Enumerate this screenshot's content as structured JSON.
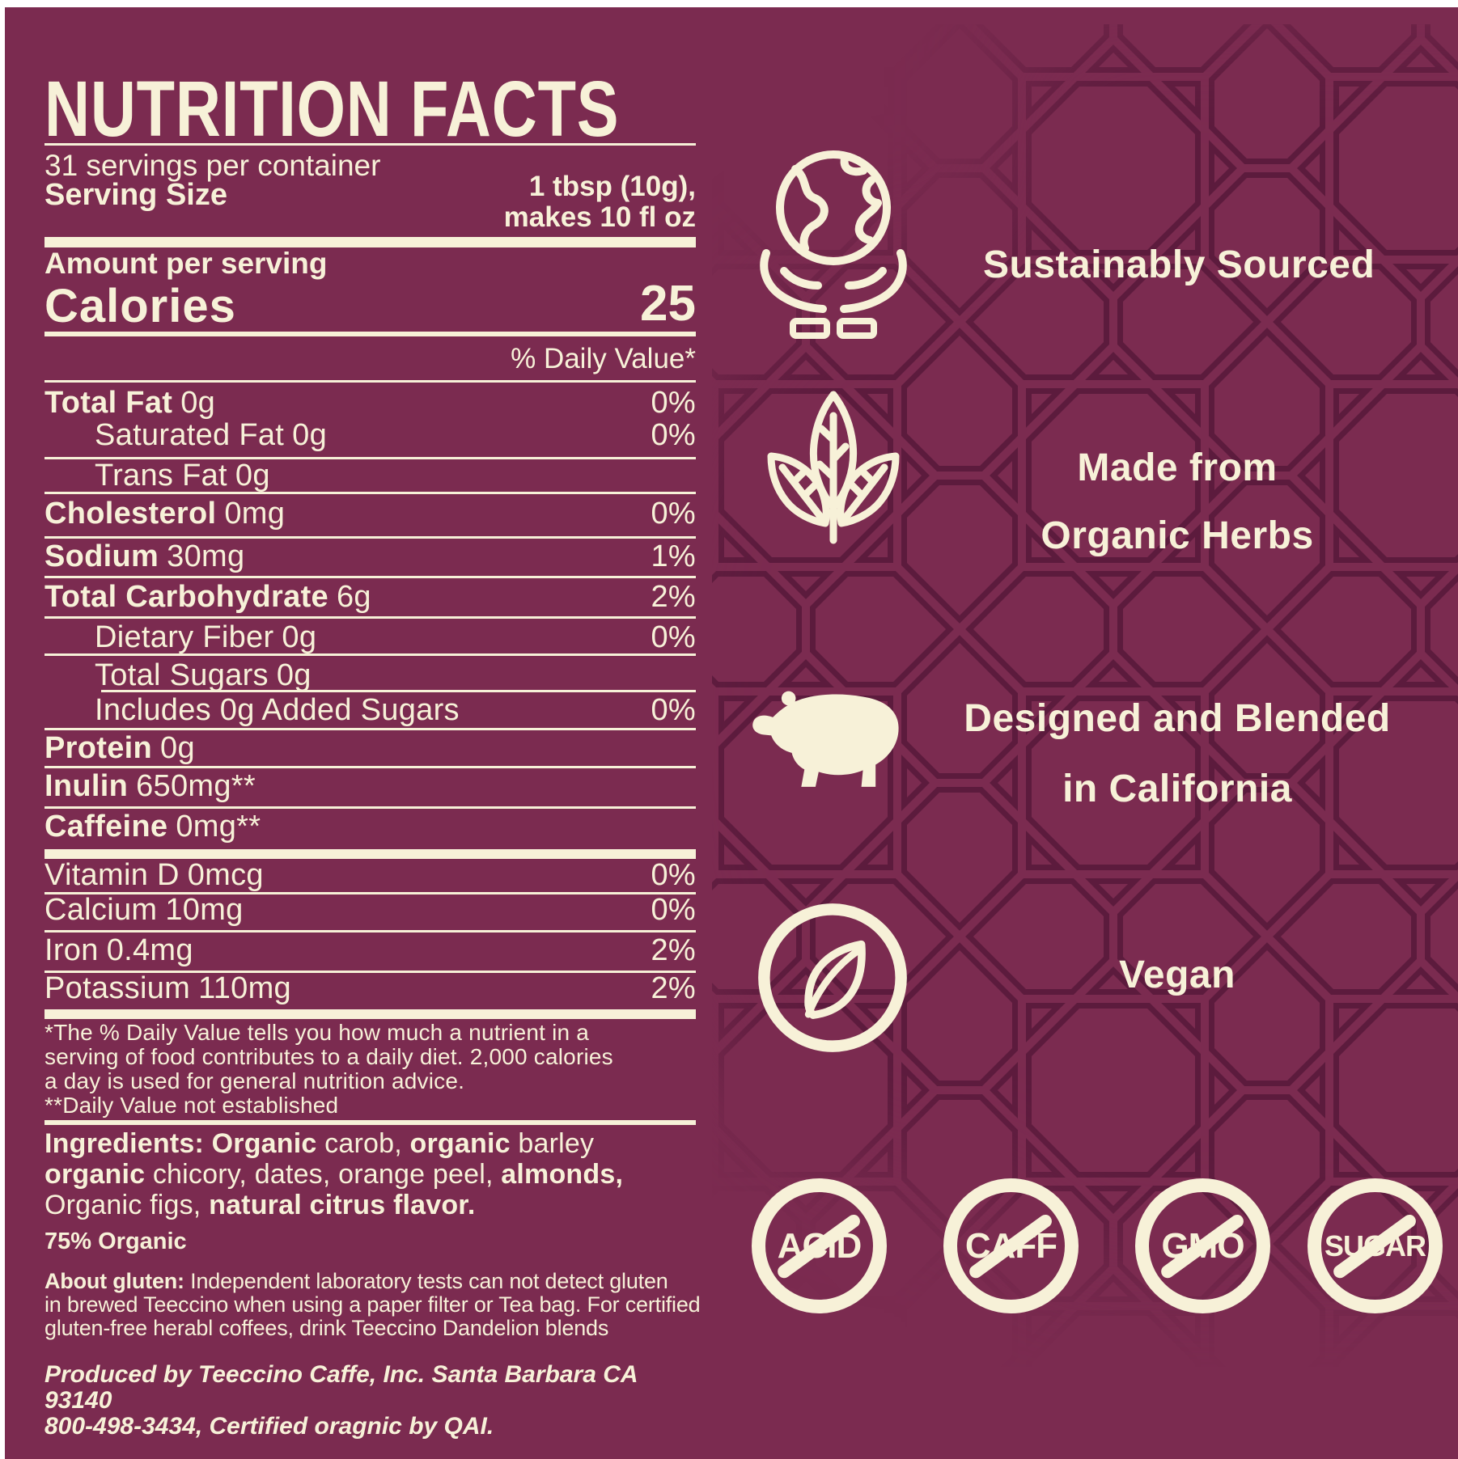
{
  "colors": {
    "background": "#7b2b50",
    "pattern": "#5c1b3d",
    "cream": "#f7f1d8",
    "border": "#ffffff"
  },
  "nutrition": {
    "title": "NUTRITION FACTS",
    "servings_per_container": "31 servings per container",
    "serving_size_label": "Serving Size",
    "serving_size_value_lines": [
      "1 tbsp (10g),",
      "makes 10 fl oz"
    ],
    "amount_label": "Amount per serving",
    "calories_label": "Calories",
    "calories_value": "25",
    "daily_value_header": "% Daily Value*",
    "rows": [
      {
        "label": "Total Fat",
        "value": "0g",
        "pct": "0%",
        "bold": true,
        "indent": 0
      },
      {
        "label": "Saturated Fat",
        "value": "0g",
        "pct": "0%",
        "bold": false,
        "indent": 1
      },
      {
        "label": "Trans Fat",
        "value": "0g",
        "pct": "",
        "bold": false,
        "indent": 1
      },
      {
        "label": "Cholesterol",
        "value": "0mg",
        "pct": "0%",
        "bold": true,
        "indent": 0
      },
      {
        "label": "Sodium",
        "value": "30mg",
        "pct": "1%",
        "bold": true,
        "indent": 0
      },
      {
        "label": "Total Carbohydrate",
        "value": "6g",
        "pct": "2%",
        "bold": true,
        "indent": 0
      },
      {
        "label": "Dietary Fiber",
        "value": "0g",
        "pct": "0%",
        "bold": false,
        "indent": 1
      },
      {
        "label": "Total Sugars",
        "value": "0g",
        "pct": "",
        "bold": false,
        "indent": 1
      },
      {
        "label": "Includes 0g Added Sugars",
        "value": "",
        "pct": "0%",
        "bold": false,
        "indent": 1
      },
      {
        "label": "Protein",
        "value": "0g",
        "pct": "",
        "bold": true,
        "indent": 0
      },
      {
        "label": "Inulin",
        "value": "650mg**",
        "pct": "",
        "bold": true,
        "indent": 0
      },
      {
        "label": "Caffeine",
        "value": "0mg**",
        "pct": "",
        "bold": true,
        "indent": 0
      },
      {
        "label": "Vitamin D",
        "value": "0mcg",
        "pct": "0%",
        "bold": false,
        "indent": 0
      },
      {
        "label": "Calcium",
        "value": "10mg",
        "pct": "0%",
        "bold": false,
        "indent": 0
      },
      {
        "label": "Iron",
        "value": "0.4mg",
        "pct": "2%",
        "bold": false,
        "indent": 0
      },
      {
        "label": "Potassium",
        "value": "110mg",
        "pct": "2%",
        "bold": false,
        "indent": 0
      }
    ],
    "footnote_lines": [
      "*The % Daily Value tells you how much a nutrient in a",
      "serving of food contributes to a daily diet. 2,000 calories",
      "a day is used for general nutrition advice.",
      "**Daily Value not established"
    ],
    "ingredients_lines": [
      [
        {
          "t": "Ingredients: Organic",
          "b": true
        },
        {
          "t": " carob, ",
          "b": false
        },
        {
          "t": "organic",
          "b": true
        },
        {
          "t": " barley",
          "b": false
        }
      ],
      [
        {
          "t": "organic",
          "b": true
        },
        {
          "t": " chicory, dates, orange peel, ",
          "b": false
        },
        {
          "t": "almonds,",
          "b": true
        }
      ],
      [
        {
          "t": "Organic figs, ",
          "b": false
        },
        {
          "t": "natural citrus flavor.",
          "b": true
        }
      ]
    ],
    "organic_pct": "75% Organic",
    "gluten_line1": [
      {
        "t": "About gluten: ",
        "b": true
      },
      {
        "t": "Independent laboratory tests can not detect gluten",
        "b": false
      }
    ],
    "gluten_lines_rest": [
      "in brewed Teeccino when using a paper filter or Tea bag. For certified",
      "gluten-free herabl coffees, drink Teeccino Dandelion blends"
    ],
    "producer_lines": [
      "Produced by Teeccino Caffe, Inc. Santa Barbara CA 93140",
      "800-498-3434, Certified oragnic by QAI."
    ]
  },
  "claims": [
    {
      "icon": "globe-hands-icon",
      "lines": [
        "Sustainably Sourced"
      ]
    },
    {
      "icon": "herb-leaves-icon",
      "lines": [
        "Made from",
        "Organic Herbs"
      ]
    },
    {
      "icon": "california-bear-icon",
      "lines": [
        "Designed and Blended",
        "in California"
      ]
    },
    {
      "icon": "vegan-leaf-icon",
      "lines": [
        "Vegan"
      ]
    }
  ],
  "badges": [
    {
      "label": "ACID"
    },
    {
      "label": "CAFF"
    },
    {
      "label": "GMO"
    },
    {
      "label": "SUGAR"
    }
  ]
}
